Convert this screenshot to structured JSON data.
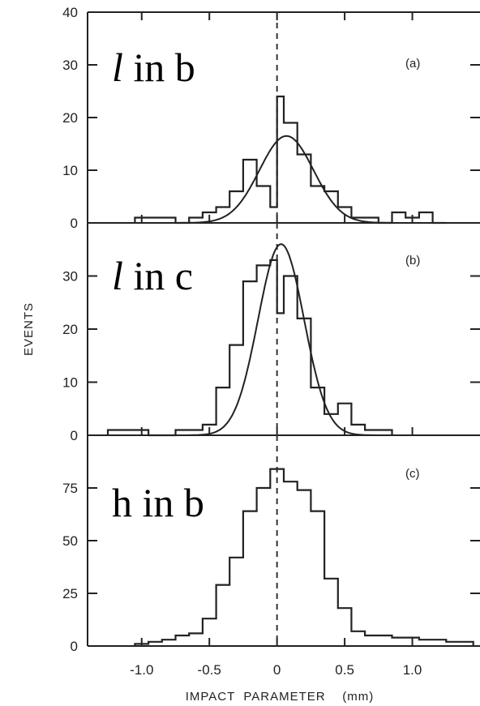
{
  "chart_data": [
    {
      "type": "histogram",
      "panel_tag": "(a)",
      "label_italic": "l",
      "label_rest": " in b",
      "ylim": [
        0,
        40
      ],
      "yticks": [
        "0",
        "10",
        "20",
        "30",
        "40"
      ],
      "xlim": [
        -1.4,
        1.5
      ],
      "bin_edges": [
        -1.05,
        -0.95,
        -0.85,
        -0.75,
        -0.65,
        -0.55,
        -0.45,
        -0.35,
        -0.25,
        -0.15,
        -0.05,
        0.0,
        0.05,
        0.15,
        0.25,
        0.35,
        0.45,
        0.55,
        0.65,
        0.75,
        0.85,
        0.95,
        1.05,
        1.15,
        1.25
      ],
      "counts": [
        1,
        1,
        1,
        0,
        1,
        2,
        3,
        6,
        12,
        7,
        3,
        24,
        19,
        13,
        7,
        6,
        3,
        1,
        1,
        0,
        2,
        1,
        2,
        0
      ],
      "fit_curve": {
        "peak": 16.5,
        "mean": 0.07,
        "sigma": 0.2
      },
      "show_xticks": false
    },
    {
      "type": "histogram",
      "panel_tag": "(b)",
      "label_italic": "l",
      "label_rest": " in c",
      "ylim": [
        0,
        40
      ],
      "yticks": [
        "0",
        "10",
        "20",
        "30"
      ],
      "xlim": [
        -1.4,
        1.5
      ],
      "bin_edges": [
        -1.25,
        -1.05,
        -0.95,
        -0.85,
        -0.75,
        -0.55,
        -0.45,
        -0.35,
        -0.25,
        -0.15,
        -0.05,
        0.0,
        0.05,
        0.15,
        0.25,
        0.35,
        0.45,
        0.55,
        0.65,
        0.75,
        0.85
      ],
      "counts": [
        1,
        1,
        0,
        0,
        1,
        2,
        9,
        17,
        29,
        32,
        33,
        23,
        30,
        22,
        9,
        4,
        6,
        2,
        1,
        1
      ],
      "fit_curve": {
        "peak": 36,
        "mean": 0.03,
        "sigma": 0.17
      },
      "show_xticks": false
    },
    {
      "type": "histogram",
      "panel_tag": "(c)",
      "label_italic": "",
      "label_rest": "h in b",
      "ylim": [
        0,
        100
      ],
      "yticks": [
        "0",
        "25",
        "50",
        "75"
      ],
      "xlim": [
        -1.4,
        1.5
      ],
      "bin_edges": [
        -1.05,
        -0.95,
        -0.85,
        -0.75,
        -0.65,
        -0.55,
        -0.45,
        -0.35,
        -0.25,
        -0.15,
        -0.05,
        0.05,
        0.15,
        0.25,
        0.35,
        0.45,
        0.55,
        0.65,
        0.75,
        0.85,
        0.95,
        1.05,
        1.15,
        1.25,
        1.35,
        1.45
      ],
      "counts": [
        1,
        2,
        3,
        5,
        6,
        13,
        29,
        42,
        64,
        75,
        84,
        78,
        74,
        64,
        32,
        18,
        7,
        5,
        5,
        4,
        4,
        3,
        3,
        2,
        2
      ],
      "show_xticks": true
    }
  ],
  "x_axis": {
    "ticks": [
      {
        "value": -1.0,
        "label": "-1.0"
      },
      {
        "value": -0.5,
        "label": "-0.5"
      },
      {
        "value": 0,
        "label": "0"
      },
      {
        "value": 0.5,
        "label": "0.5"
      },
      {
        "value": 1.0,
        "label": "1.0"
      }
    ],
    "label": "IMPACT  PARAMETER    (mm)"
  },
  "y_axis_label": "EVENTS"
}
